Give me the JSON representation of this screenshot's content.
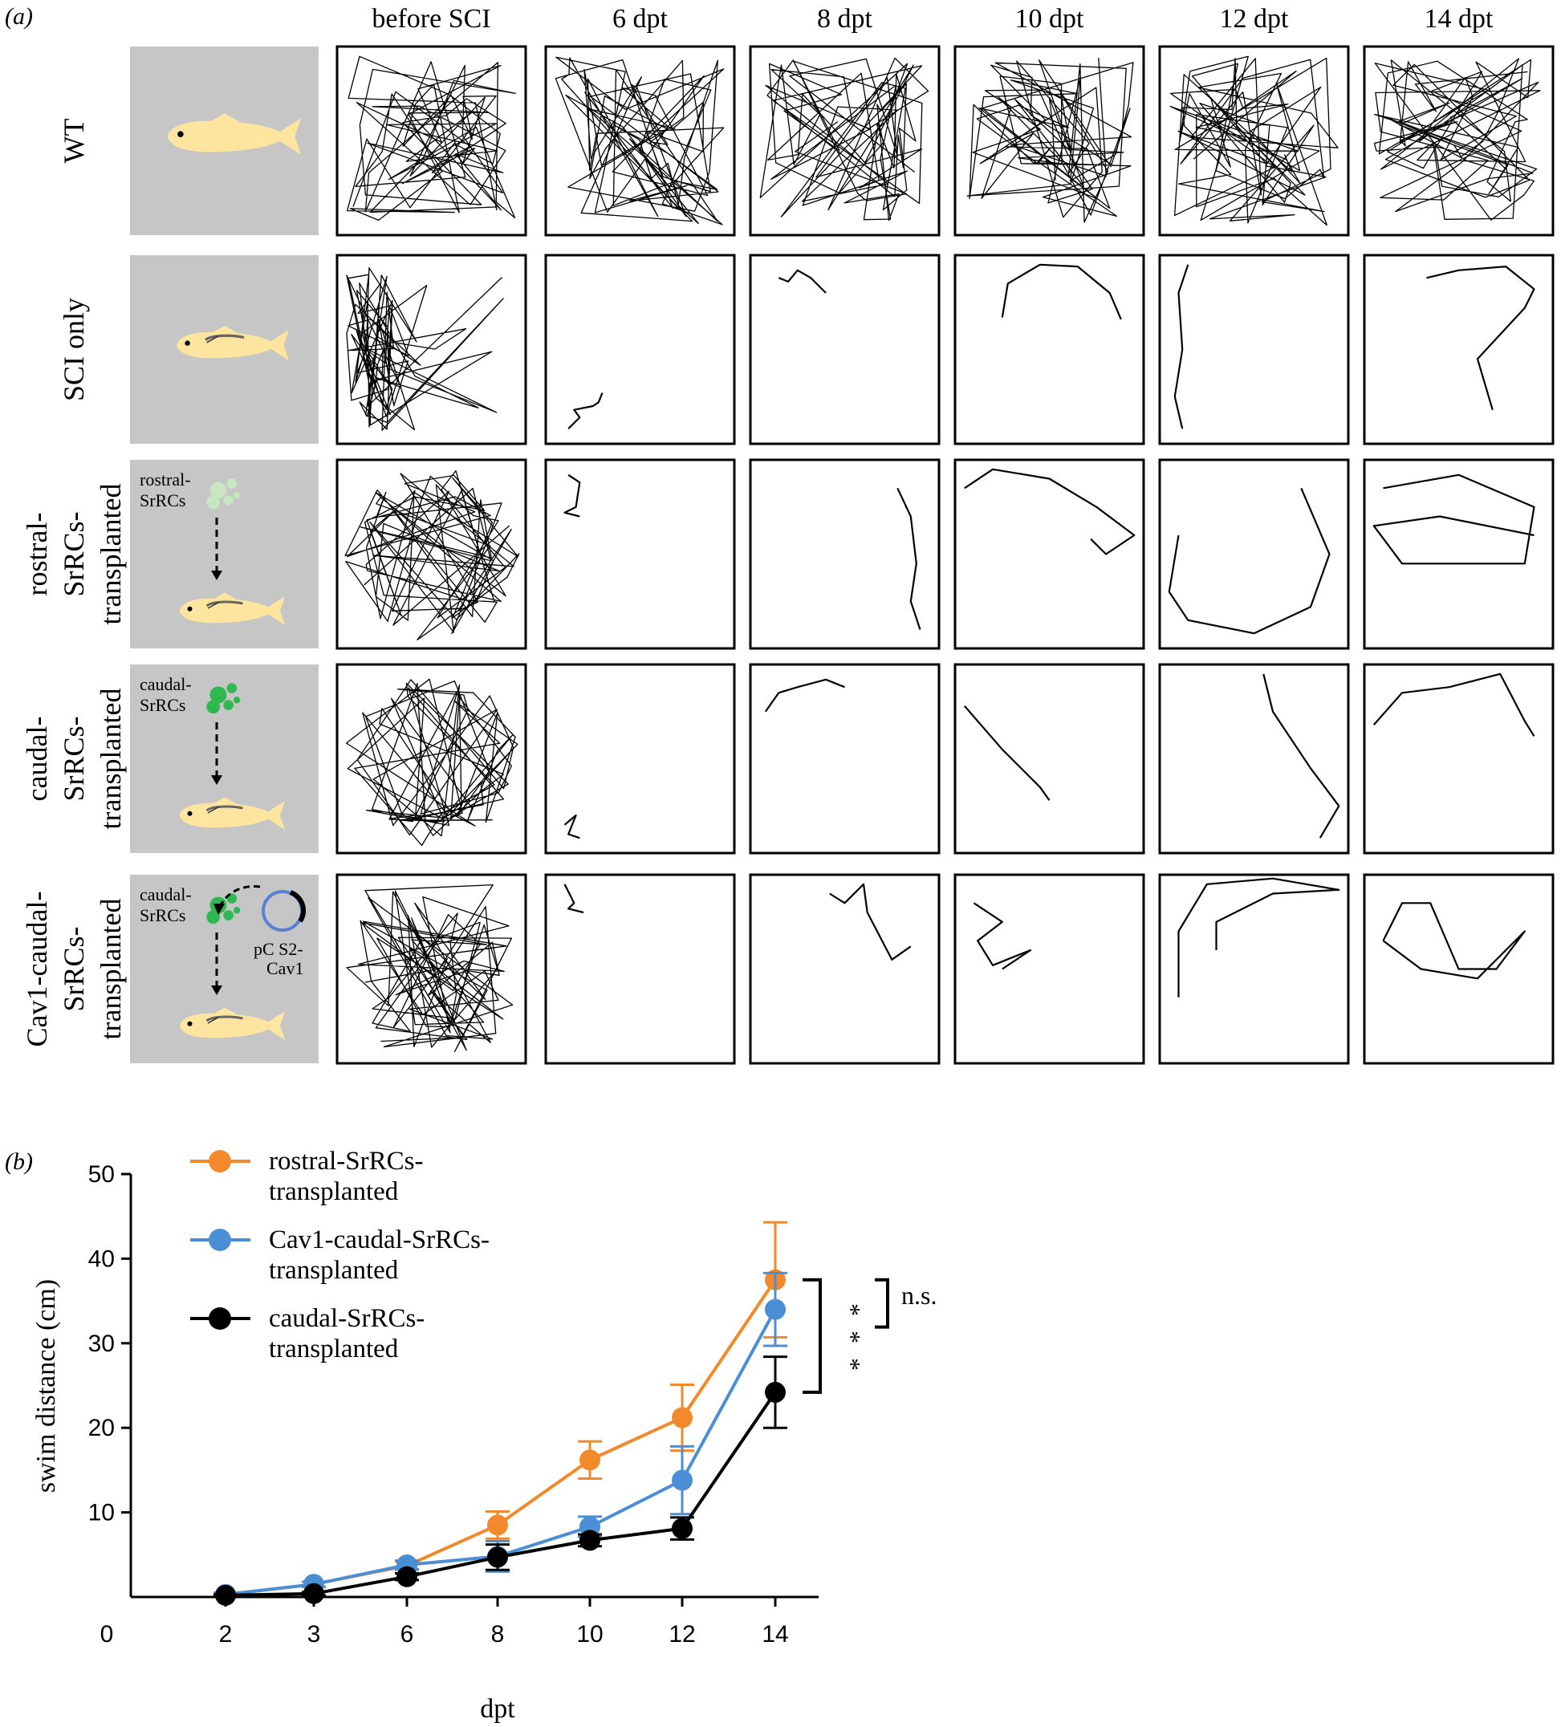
{
  "panel_a": {
    "label": "(a)",
    "columns": [
      "before SCI",
      "6 dpt",
      "8 dpt",
      "10 dpt",
      "12 dpt",
      "14 dpt"
    ],
    "rows": [
      {
        "title_lines": [
          "WT"
        ],
        "diagram": "intact-fish",
        "inset_text": []
      },
      {
        "title_lines": [
          "SCI only"
        ],
        "diagram": "lesioned-fish",
        "inset_text": []
      },
      {
        "title_lines": [
          "rostral-",
          "SrRCs-",
          "transplanted"
        ],
        "diagram": "rostral-transplant",
        "inset_text": [
          "rostral-",
          "SrRCs"
        ]
      },
      {
        "title_lines": [
          "caudal-",
          "SrRCs-",
          "transplanted"
        ],
        "diagram": "caudal-transplant",
        "inset_text": [
          "caudal-",
          "SrRCs"
        ]
      },
      {
        "title_lines": [
          "Cav1-caudal-",
          "SrRCs-",
          "transplanted"
        ],
        "diagram": "cav1-caudal-transplant",
        "inset_text": [
          "caudal-",
          "SrRCs",
          "pC S2-",
          "Cav1"
        ]
      }
    ],
    "colors": {
      "inset_background": "#c6c6c6",
      "fish_body": "#fde5a0",
      "rostral_cells": "#c8e6c0",
      "caudal_cells": "#2eb84f",
      "plasmid_ring": "#5b7fd1"
    }
  },
  "panel_b": {
    "label": "(b)"
  },
  "chart_data": {
    "type": "line",
    "title": "",
    "xlabel": "dpt",
    "ylabel": "swim distance (cm)",
    "x_categories": [
      "0",
      "2",
      "3",
      "6",
      "8",
      "10",
      "12",
      "14"
    ],
    "x": [
      "2",
      "3",
      "6",
      "8",
      "10",
      "12",
      "14"
    ],
    "y_ticks": [
      10,
      20,
      30,
      40,
      50
    ],
    "ylim": [
      0,
      50
    ],
    "legend_position": "top-left",
    "series": [
      {
        "name": "rostral-SrRCs-transplanted",
        "legend_lines": [
          "rostral-SrRCs-",
          "transplanted"
        ],
        "color": "#f28a2c",
        "values": [
          0.3,
          1.5,
          3.7,
          8.5,
          16.2,
          21.2,
          37.5
        ],
        "errors": [
          0.2,
          0.3,
          0.5,
          1.6,
          2.2,
          3.9,
          6.8
        ]
      },
      {
        "name": "Cav1-caudal-SrRCs-transplanted",
        "legend_lines": [
          "Cav1-caudal-SrRCs-",
          "transplanted"
        ],
        "color": "#4a8fd6",
        "values": [
          0.3,
          1.5,
          3.8,
          4.8,
          8.3,
          13.8,
          34.0
        ],
        "errors": [
          0.2,
          0.3,
          0.5,
          1.8,
          1.2,
          4.0,
          4.3
        ]
      },
      {
        "name": "caudal-SrRCs-transplanted",
        "legend_lines": [
          "caudal-SrRCs-",
          "transplanted"
        ],
        "color": "#000000",
        "values": [
          0.2,
          0.4,
          2.4,
          4.7,
          6.7,
          8.1,
          24.2
        ],
        "errors": [
          0.1,
          0.2,
          0.4,
          1.5,
          0.7,
          1.3,
          4.2
        ]
      }
    ],
    "annotations": [
      {
        "text": "n.s.",
        "between": [
          "rostral-SrRCs-transplanted",
          "Cav1-caudal-SrRCs-transplanted"
        ],
        "at_x": "14"
      },
      {
        "text": "***",
        "between": [
          "rostral-SrRCs-transplanted",
          "caudal-SrRCs-transplanted"
        ],
        "at_x": "14"
      }
    ]
  }
}
